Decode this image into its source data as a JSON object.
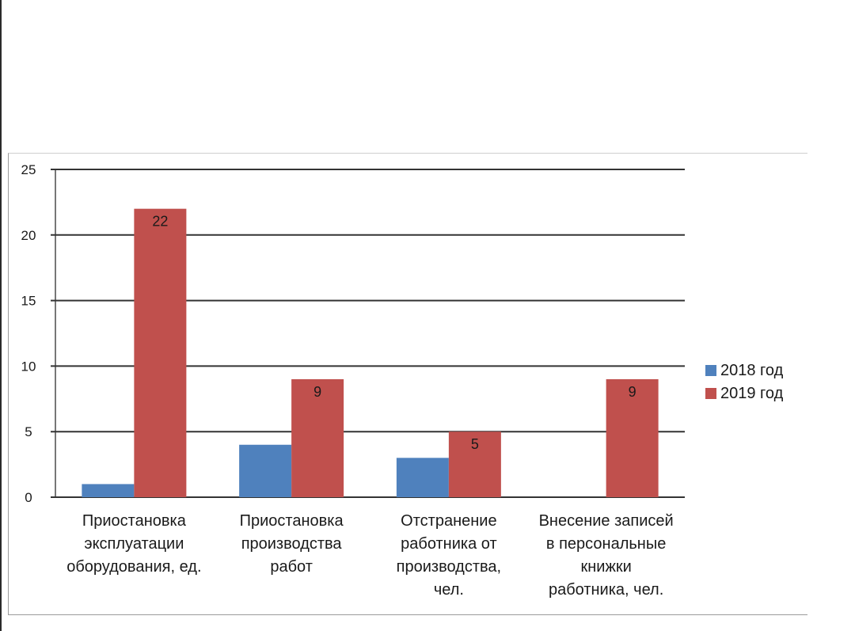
{
  "chart_data": {
    "type": "bar",
    "categories": [
      [
        "Приостановка",
        "эксплуатации",
        "оборудования, ед."
      ],
      [
        "Приостановка",
        "производства",
        "работ"
      ],
      [
        "Отстранение",
        "работника от",
        "производства,",
        "чел."
      ],
      [
        "Внесение записей",
        "в персональные",
        "книжки",
        "работника, чел."
      ]
    ],
    "series": [
      {
        "name": "2018 год",
        "color": "#4f81bd",
        "values": [
          1,
          4,
          3,
          0
        ],
        "labels": [
          null,
          null,
          null,
          null
        ]
      },
      {
        "name": "2019 год",
        "color": "#c0504d",
        "values": [
          22,
          9,
          5,
          9
        ],
        "labels": [
          "22",
          "9",
          "5",
          "9"
        ]
      }
    ],
    "ylim": [
      0,
      25
    ],
    "yticks": [
      0,
      5,
      10,
      15,
      20,
      25
    ],
    "grid": true,
    "legend": "right"
  }
}
